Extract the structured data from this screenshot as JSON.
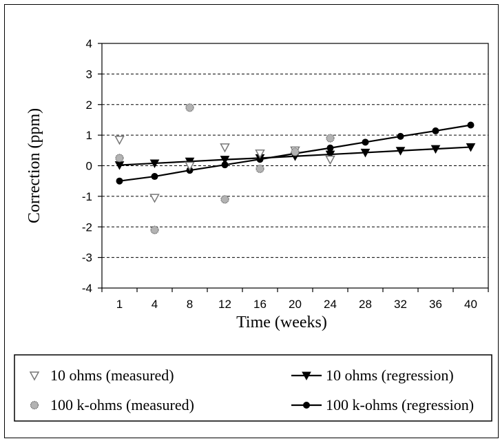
{
  "chart_data": {
    "type": "scatter",
    "xlabel": "Time (weeks)",
    "ylabel": "Correction (ppm)",
    "x_categories": [
      "1",
      "4",
      "8",
      "12",
      "16",
      "20",
      "24",
      "28",
      "32",
      "36",
      "40"
    ],
    "yticks": [
      "4",
      "3",
      "2",
      "1",
      "0",
      "-1",
      "-2",
      "-3",
      "-4"
    ],
    "ylim": [
      -4,
      4
    ],
    "grid": "horizontal dashed",
    "legend_position": "bottom",
    "series": [
      {
        "name": "10 ohms (measured)",
        "kind": "points",
        "marker": "triangle-down-open",
        "color": "#888888",
        "points": [
          [
            1,
            0.85
          ],
          [
            4,
            -1.05
          ],
          [
            8,
            0.0
          ],
          [
            12,
            0.6
          ],
          [
            16,
            0.4
          ],
          [
            20,
            0.5
          ],
          [
            24,
            0.2
          ]
        ]
      },
      {
        "name": "100 k-ohms (measured)",
        "kind": "points",
        "marker": "circle-gray",
        "color": "#aaaaaa",
        "points": [
          [
            1,
            0.25
          ],
          [
            4,
            -2.1
          ],
          [
            8,
            1.9
          ],
          [
            12,
            -1.1
          ],
          [
            16,
            -0.1
          ],
          [
            20,
            0.45
          ],
          [
            24,
            0.9
          ]
        ]
      },
      {
        "name": "10 ohms (regression)",
        "kind": "line",
        "marker": "triangle-down-filled",
        "color": "#000000",
        "points": [
          [
            1,
            0.02
          ],
          [
            4,
            0.08
          ],
          [
            8,
            0.14
          ],
          [
            12,
            0.2
          ],
          [
            16,
            0.25
          ],
          [
            20,
            0.31
          ],
          [
            24,
            0.37
          ],
          [
            28,
            0.43
          ],
          [
            32,
            0.49
          ],
          [
            36,
            0.55
          ],
          [
            40,
            0.61
          ]
        ]
      },
      {
        "name": "100 k-ohms (regression)",
        "kind": "line",
        "marker": "circle-filled",
        "color": "#000000",
        "points": [
          [
            1,
            -0.5
          ],
          [
            4,
            -0.35
          ],
          [
            8,
            -0.15
          ],
          [
            12,
            0.03
          ],
          [
            16,
            0.21
          ],
          [
            20,
            0.4
          ],
          [
            24,
            0.58
          ],
          [
            28,
            0.77
          ],
          [
            32,
            0.96
          ],
          [
            36,
            1.14
          ],
          [
            40,
            1.33
          ]
        ]
      }
    ]
  }
}
